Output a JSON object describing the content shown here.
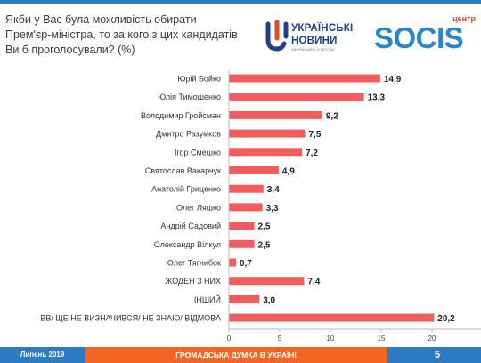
{
  "header": {
    "title_lines": [
      "Якби у Вас була можливість обирати",
      "Прем'єр-міністра, то за кого з цих кандидатів",
      "Ви б проголосували? (%)"
    ]
  },
  "logos": {
    "un_line1": "УКРАЇНСЬКІ",
    "un_line2": "НОВИНИ",
    "un_line3": "ІНФОРМАЦІЙНЕ АГЕНТСТВО",
    "socis_small": "центр",
    "socis_text": "SOCIS",
    "un_color": "#1f3f8f",
    "socis_color": "#2a86c8"
  },
  "chart_data": {
    "type": "bar",
    "orientation": "horizontal",
    "categories": [
      "Юрій Бойко",
      "Юлія Тимошенко",
      "Володимир Гройсман",
      "Дмитро Разумков",
      "Ігор Смешко",
      "Святослав Вакарчук",
      "Анатолій Гриценко",
      "Олег Ляшко",
      "Андрій Садовий",
      "Олександр Вілкул",
      "Олег Тягнибок",
      "ЖОДЕН З НИХ",
      "ІНШИЙ",
      "ВВ/ ЩЕ НЕ ВИЗНАЧИВСЯ/ НЕ ЗНАЮ/ ВІДМОВА"
    ],
    "values": [
      14.9,
      13.3,
      9.2,
      7.5,
      7.2,
      4.9,
      3.4,
      3.3,
      2.5,
      2.5,
      0.7,
      7.4,
      3.0,
      20.2
    ],
    "value_labels": [
      "14,9",
      "13,3",
      "9,2",
      "7,5",
      "7,2",
      "4,9",
      "3,4",
      "3,3",
      "2,5",
      "2,5",
      "0,7",
      "7,4",
      "3,0",
      "20,2"
    ],
    "xlim": [
      0,
      25
    ],
    "xticks": [
      0,
      5,
      10,
      15,
      20
    ],
    "xtick_labels": [
      "0",
      "5",
      "10",
      "15",
      "20"
    ],
    "bar_color": "#f25c5c",
    "grid": false,
    "legend": "none"
  },
  "footer": {
    "left": "Липень 2019",
    "middle": "ГРОМАДСЬКА ДУМКА В УКРАЇНІ",
    "page_number": "5",
    "blue": "#2e7bc4",
    "orange": "#f26522"
  }
}
